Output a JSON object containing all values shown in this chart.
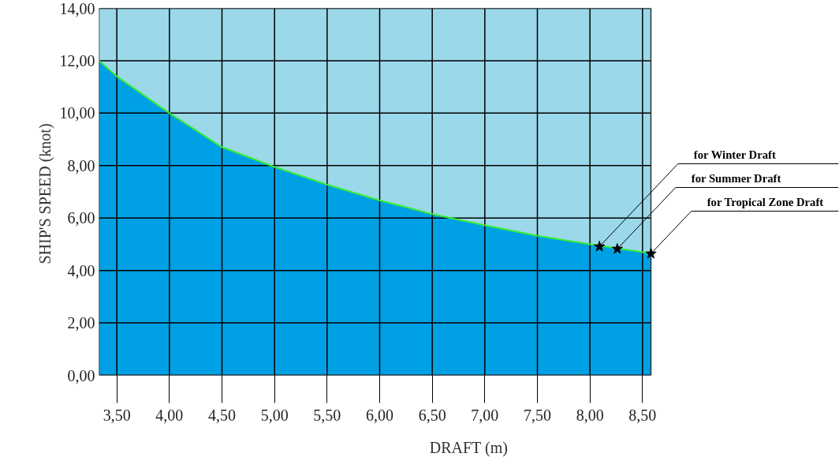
{
  "chart_data": {
    "type": "area",
    "xlabel": "DRAFT (m)",
    "ylabel": "SHIP'S SPEED  (knot)",
    "xlim": [
      3.33,
      8.58
    ],
    "ylim": [
      0,
      14
    ],
    "xticks": [
      {
        "value": 3.5,
        "label": "3,50"
      },
      {
        "value": 4.0,
        "label": "4,00"
      },
      {
        "value": 4.5,
        "label": "4,50"
      },
      {
        "value": 5.0,
        "label": "5,00"
      },
      {
        "value": 5.5,
        "label": "5,50"
      },
      {
        "value": 6.0,
        "label": "6,00"
      },
      {
        "value": 6.5,
        "label": "6,50"
      },
      {
        "value": 7.0,
        "label": "7,00"
      },
      {
        "value": 7.5,
        "label": "7,50"
      },
      {
        "value": 8.0,
        "label": "8,00"
      },
      {
        "value": 8.5,
        "label": "8,50"
      }
    ],
    "yticks": [
      {
        "value": 0,
        "label": "0,00"
      },
      {
        "value": 2,
        "label": "2,00"
      },
      {
        "value": 4,
        "label": "4,00"
      },
      {
        "value": 6,
        "label": "6,00"
      },
      {
        "value": 8,
        "label": "8,00"
      },
      {
        "value": 10,
        "label": "10,00"
      },
      {
        "value": 12,
        "label": "12,00"
      },
      {
        "value": 14,
        "label": "14,00"
      }
    ],
    "grid": true,
    "bands": [
      {
        "axis": "x",
        "from": 3.33,
        "to": 8.58,
        "color": "#9bd8ea"
      }
    ],
    "series": [
      {
        "color": "#00a0e4",
        "x": [
          3.33,
          3.5,
          4.0,
          4.5,
          5.0,
          5.5,
          6.0,
          6.5,
          7.0,
          7.5,
          8.0,
          8.5,
          8.58
        ],
        "values": [
          12.0,
          11.4,
          10.0,
          8.7,
          7.95,
          7.27,
          6.67,
          6.15,
          5.72,
          5.32,
          5.0,
          4.7,
          4.64
        ]
      },
      {
        "type": "line",
        "color": "#33ee33",
        "x": [
          3.33,
          3.5,
          4.0,
          4.5,
          5.0,
          5.5,
          6.0,
          6.5,
          7.0,
          7.5,
          8.0,
          8.5,
          8.58
        ],
        "values": [
          12.0,
          11.4,
          10.0,
          8.7,
          7.95,
          7.27,
          6.67,
          6.15,
          5.72,
          5.32,
          5.0,
          4.7,
          4.64
        ]
      },
      {
        "type": "scatter",
        "color": "#000000",
        "marker": "star",
        "x": [
          8.09,
          8.26,
          8.58
        ],
        "values": [
          4.91,
          4.82,
          4.64
        ]
      }
    ],
    "annotations": [
      {
        "text": "for Winter Draft",
        "x": 8.09,
        "y": 4.91
      },
      {
        "text": "for Summer Draft",
        "x": 8.26,
        "y": 4.82
      },
      {
        "text": "for Tropical Zone Draft",
        "x": 8.58,
        "y": 4.64
      }
    ]
  }
}
